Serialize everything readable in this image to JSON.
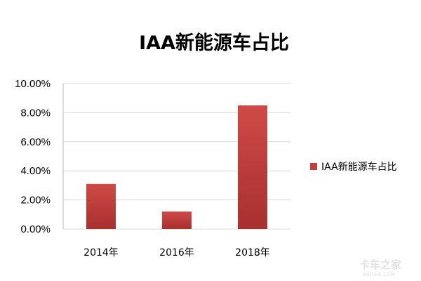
{
  "chart_data": {
    "type": "bar",
    "title": "IAA新能源车占比",
    "categories": [
      "2014年",
      "2016年",
      "2018年"
    ],
    "series": [
      {
        "name": "IAA新能源车占比",
        "values": [
          0.031,
          0.012,
          0.085
        ],
        "color": "#c0403d"
      }
    ],
    "ylim": [
      0,
      0.1
    ],
    "yticks": [
      0,
      0.02,
      0.04,
      0.06,
      0.08,
      0.1
    ],
    "ytick_labels": [
      "0.00%",
      "2.00%",
      "4.00%",
      "6.00%",
      "8.00%",
      "10.00%"
    ],
    "grid": true,
    "legend": "right",
    "xlabel": "",
    "ylabel": ""
  },
  "watermark": {
    "main": "卡车之家",
    "sub": "360CHE.COM"
  }
}
